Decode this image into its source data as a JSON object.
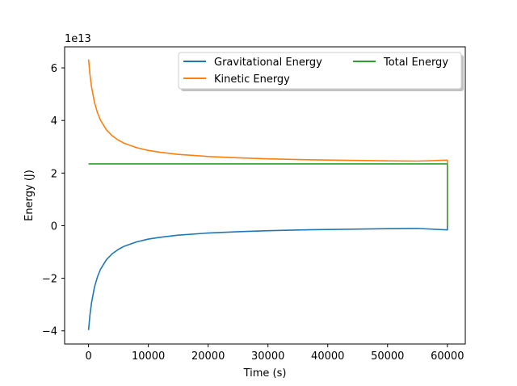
{
  "chart_data": {
    "type": "line",
    "title": "",
    "xlabel": "Time (s)",
    "ylabel": "Energy (J)",
    "offset_label": "1e13",
    "xlim": [
      -4000,
      63000
    ],
    "ylim": [
      -4.5,
      6.8
    ],
    "x_ticks": [
      0,
      10000,
      20000,
      30000,
      40000,
      50000,
      60000
    ],
    "y_ticks": [
      -4,
      -2,
      0,
      2,
      4,
      6
    ],
    "y_tick_labels": [
      "−4",
      "−2",
      "0",
      "2",
      "4",
      "6"
    ],
    "grid": false,
    "legend": {
      "placement": "upper-right",
      "columns": 2
    },
    "series": [
      {
        "name": "Gravitational Energy",
        "color": "#1f77b4",
        "x": [
          0,
          250,
          500,
          1000,
          1500,
          2000,
          3000,
          4000,
          5000,
          6000,
          8000,
          10000,
          12000,
          15000,
          20000,
          25000,
          30000,
          35000,
          40000,
          45000,
          50000,
          55000,
          60000,
          60000
        ],
        "y": [
          -3.97,
          -3.37,
          -2.93,
          -2.33,
          -1.94,
          -1.66,
          -1.29,
          -1.06,
          -0.9,
          -0.78,
          -0.62,
          -0.51,
          -0.44,
          -0.36,
          -0.28,
          -0.23,
          -0.19,
          -0.165,
          -0.145,
          -0.13,
          -0.115,
          -0.105,
          -0.16,
          0
        ]
      },
      {
        "name": "Kinetic Energy",
        "color": "#ff7f0e",
        "x": [
          0,
          250,
          500,
          1000,
          1500,
          2000,
          3000,
          4000,
          5000,
          6000,
          8000,
          10000,
          12000,
          15000,
          20000,
          25000,
          30000,
          35000,
          40000,
          45000,
          50000,
          55000,
          60000,
          60000
        ],
        "y": [
          6.32,
          5.72,
          5.28,
          4.68,
          4.29,
          4.01,
          3.64,
          3.41,
          3.25,
          3.13,
          2.97,
          2.86,
          2.79,
          2.71,
          2.63,
          2.58,
          2.54,
          2.515,
          2.495,
          2.48,
          2.465,
          2.455,
          2.49,
          0
        ]
      },
      {
        "name": "Total Energy",
        "color": "#2ca02c",
        "x": [
          0,
          10000,
          20000,
          30000,
          40000,
          50000,
          60000,
          60000
        ],
        "y": [
          2.35,
          2.35,
          2.35,
          2.35,
          2.35,
          2.35,
          2.35,
          0
        ]
      }
    ]
  }
}
